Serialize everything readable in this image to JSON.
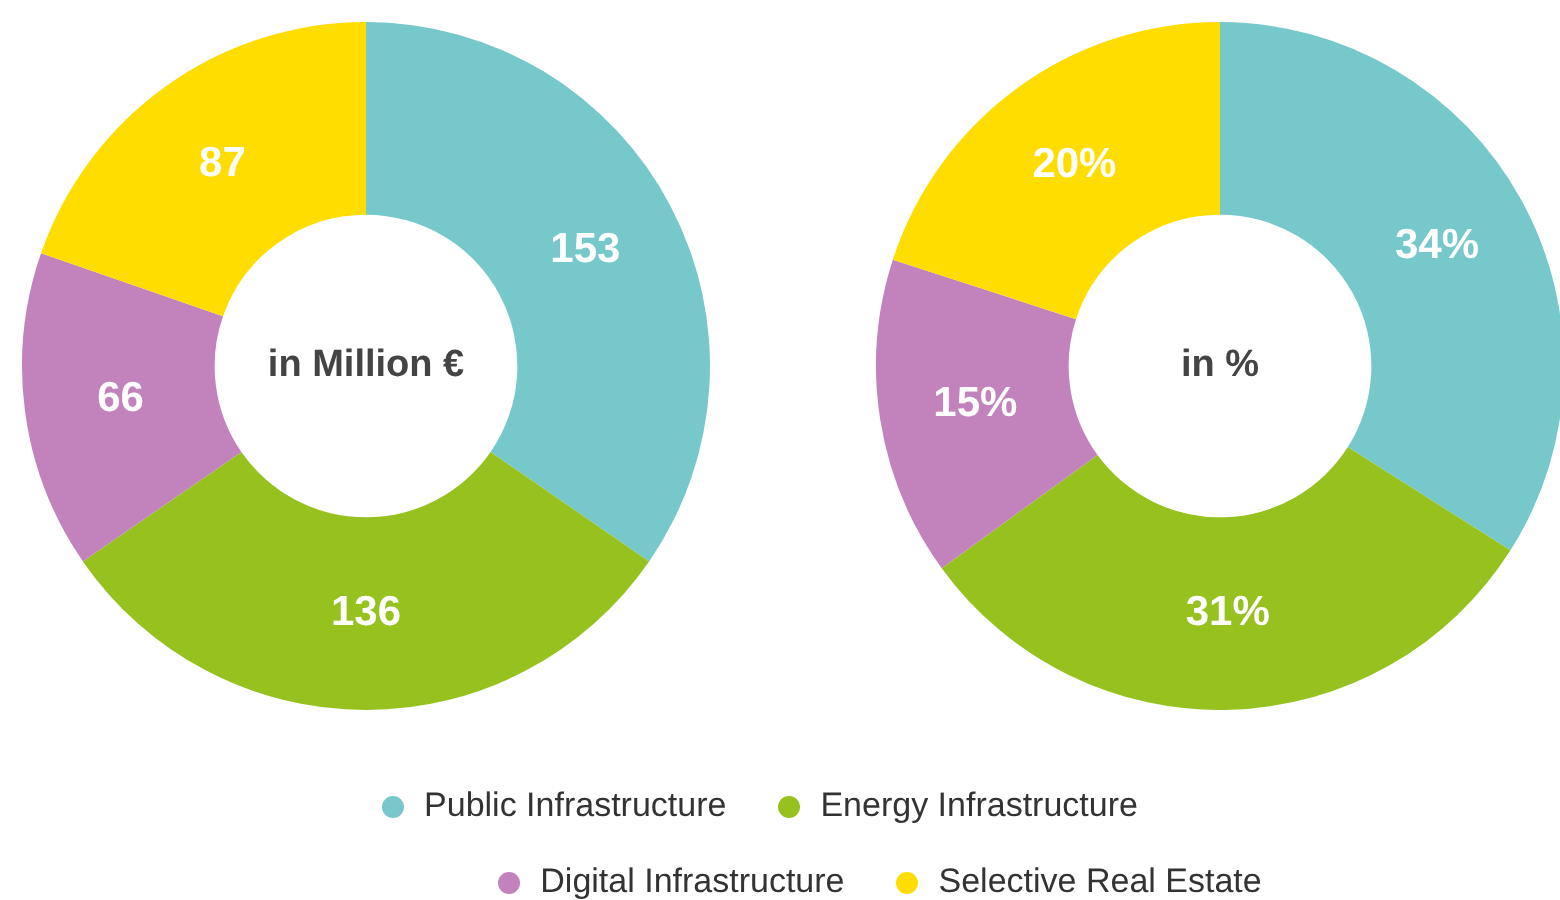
{
  "chart_data": [
    {
      "type": "donut",
      "categories": [
        "Public Infrastructure",
        "Energy Infrastructure",
        "Digital Infrastructure",
        "Selective Real Estate"
      ],
      "values": [
        153,
        136,
        66,
        87
      ],
      "colors": [
        "#77c8cb",
        "#97c11f",
        "#c283bc",
        "#ffdd00"
      ],
      "data_labels": true,
      "annotations": [
        "in Million €"
      ],
      "legend": "bottom"
    },
    {
      "type": "donut",
      "categories": [
        null,
        null,
        null,
        null
      ],
      "values": [
        34,
        31,
        15,
        20
      ],
      "colors": [
        "#77c8cb",
        "#97c11f",
        "#c283bc",
        "#ffdd00"
      ],
      "value_labels": [
        "34%",
        "31%",
        "15%",
        "20%"
      ],
      "annotations": [
        "in %"
      ]
    }
  ]
}
